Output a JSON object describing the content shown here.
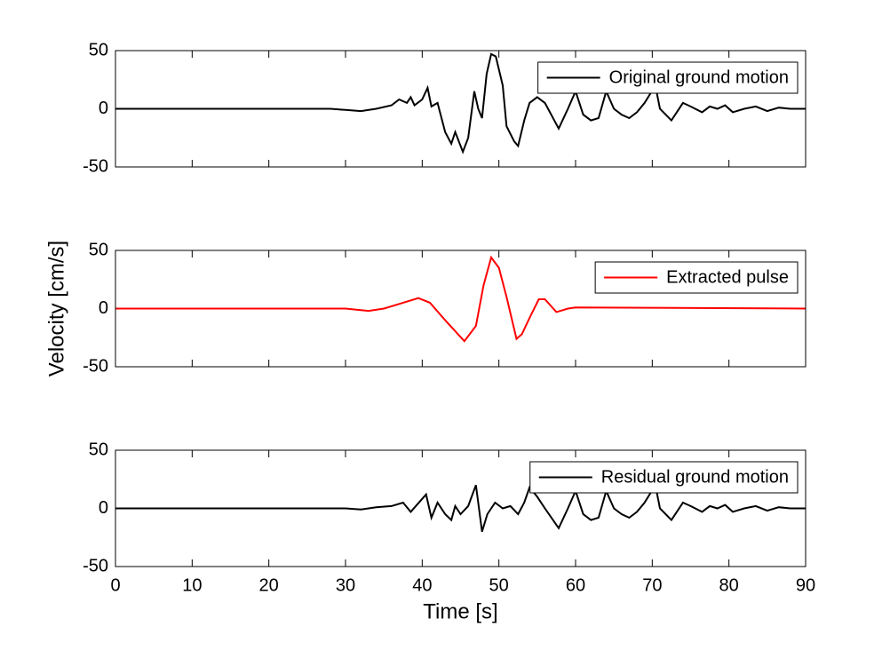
{
  "chart_data": [
    {
      "type": "line",
      "x": [
        0,
        28,
        30,
        32,
        34,
        36,
        37,
        38,
        38.5,
        39,
        40,
        40.7,
        41.2,
        42,
        43,
        43.8,
        44.3,
        45.3,
        46,
        46.8,
        47.3,
        47.8,
        48.4,
        49,
        49.6,
        50.5,
        51,
        52,
        52.5,
        53.3,
        54,
        55,
        56,
        57.8,
        59,
        60,
        61,
        62,
        63,
        64,
        65,
        66,
        67,
        68,
        69,
        70.4,
        71,
        72.5,
        74,
        75,
        76.5,
        77.5,
        78.5,
        79.5,
        80.5,
        82,
        83.5,
        85,
        86.5,
        88,
        90
      ],
      "series": [
        {
          "name": "Original ground motion",
          "color": "#000000",
          "values": [
            0,
            0,
            -1,
            -2,
            0,
            3,
            8,
            5,
            10,
            3,
            8,
            18,
            2,
            5,
            -20,
            -30,
            -20,
            -37,
            -25,
            15,
            0,
            -8,
            30,
            47,
            45,
            20,
            -15,
            -28,
            -32,
            -10,
            5,
            10,
            5,
            -17,
            0,
            15,
            -5,
            -10,
            -8,
            15,
            0,
            -5,
            -8,
            -3,
            5,
            20,
            0,
            -10,
            5,
            2,
            -3,
            2,
            0,
            3,
            -3,
            0,
            2,
            -2,
            1,
            0,
            0
          ]
        }
      ],
      "xlim": [
        0,
        90
      ],
      "ylim": [
        -50,
        50
      ],
      "yticks": [
        -50,
        0,
        50
      ],
      "legend": "upper right"
    },
    {
      "type": "line",
      "x": [
        0,
        30,
        33,
        35,
        37,
        39.5,
        41,
        43,
        45.5,
        47,
        48,
        49,
        50,
        51,
        52.3,
        53,
        54,
        55.2,
        56,
        57.5,
        59,
        60,
        90
      ],
      "series": [
        {
          "name": "Extracted pulse",
          "color": "#ff0000",
          "values": [
            0,
            0,
            -2,
            0,
            4,
            9,
            5,
            -10,
            -28,
            -15,
            20,
            44,
            35,
            10,
            -26,
            -22,
            -8,
            8,
            8,
            -3,
            0,
            1,
            0
          ]
        }
      ],
      "xlim": [
        0,
        90
      ],
      "ylim": [
        -50,
        50
      ],
      "yticks": [
        -50,
        0,
        50
      ],
      "legend": "upper right",
      "ylabel": "Velocity [cm/s]"
    },
    {
      "type": "line",
      "x": [
        0,
        28,
        30,
        32,
        34,
        36,
        37.5,
        38.5,
        40.5,
        41.2,
        42,
        43,
        43.8,
        44.3,
        45,
        46,
        47,
        47.8,
        48.5,
        49.5,
        50.5,
        51.5,
        52.5,
        53.3,
        54,
        55,
        56,
        57.8,
        59,
        60,
        61,
        62,
        63,
        64,
        65,
        66,
        67,
        68,
        69,
        70.4,
        71,
        72.5,
        74,
        75,
        76.5,
        77.5,
        78.5,
        79.5,
        80.5,
        82,
        83.5,
        85,
        86.5,
        88,
        90
      ],
      "series": [
        {
          "name": "Residual ground motion",
          "color": "#000000",
          "values": [
            0,
            0,
            0,
            -1,
            1,
            2,
            5,
            -3,
            12,
            -8,
            5,
            -5,
            -10,
            2,
            -5,
            2,
            20,
            -20,
            -5,
            5,
            0,
            2,
            -5,
            5,
            18,
            10,
            0,
            -17,
            0,
            15,
            -5,
            -10,
            -8,
            15,
            0,
            -5,
            -8,
            -3,
            5,
            20,
            0,
            -10,
            5,
            2,
            -3,
            2,
            0,
            3,
            -3,
            0,
            2,
            -2,
            1,
            0,
            0
          ]
        }
      ],
      "xlim": [
        0,
        90
      ],
      "ylim": [
        -50,
        50
      ],
      "yticks": [
        -50,
        0,
        50
      ],
      "legend": "upper right",
      "xticks": [
        0,
        10,
        20,
        30,
        40,
        50,
        60,
        70,
        80,
        90
      ],
      "xlabel": "Time [s]"
    }
  ]
}
